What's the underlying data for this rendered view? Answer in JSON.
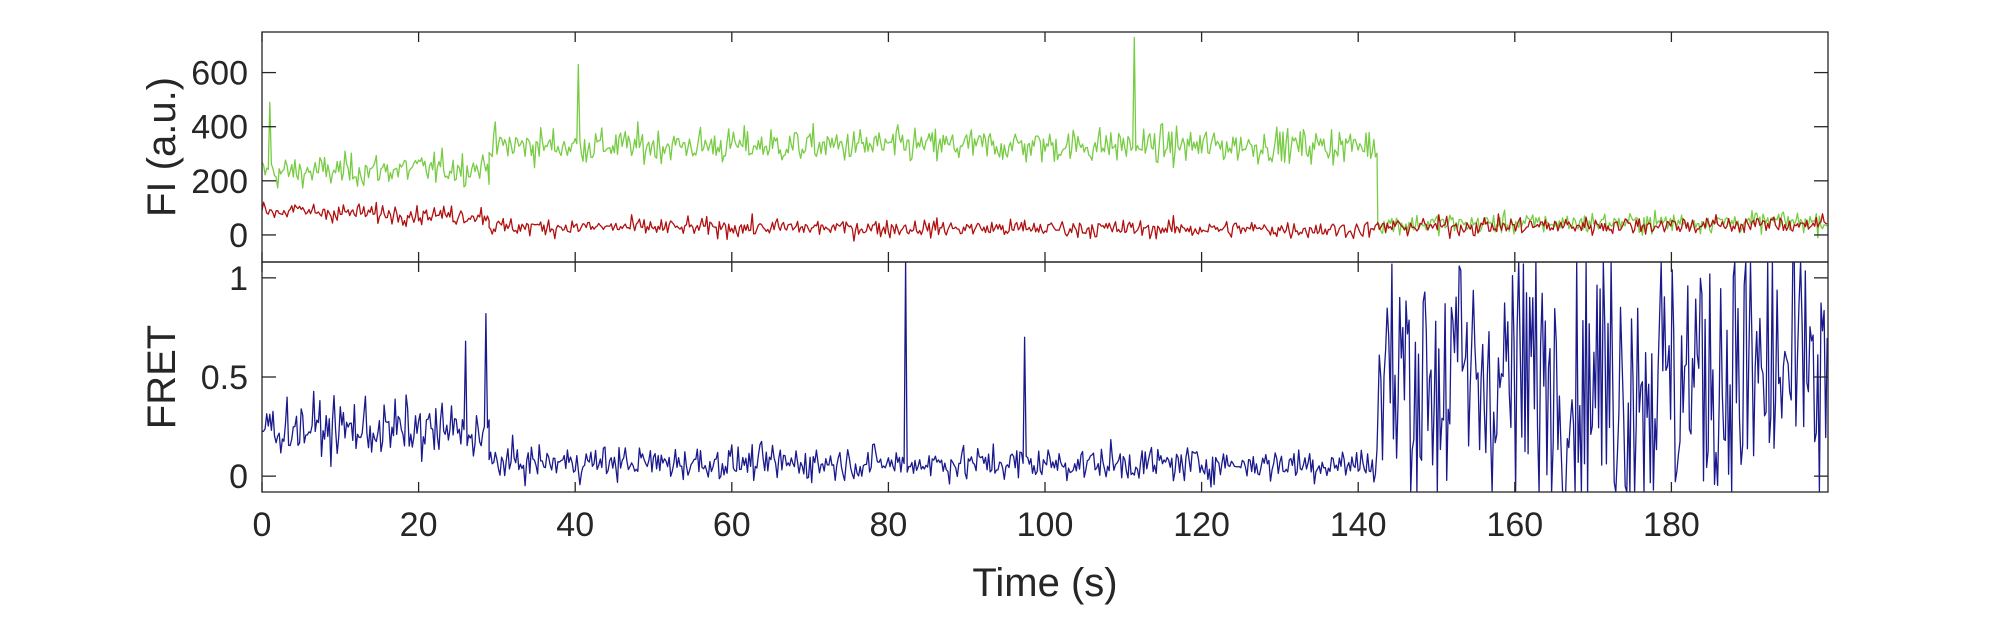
{
  "chart_data": [
    {
      "type": "line",
      "panel": "top",
      "ylabel": "FI (a.u.)",
      "xlim": [
        0,
        200
      ],
      "ylim": [
        -100,
        750
      ],
      "yticks": [
        0,
        200,
        400,
        600
      ],
      "ytick_labels": [
        "0",
        "200",
        "400",
        "600"
      ],
      "xticks": [
        0,
        20,
        40,
        60,
        80,
        100,
        120,
        140,
        160,
        180
      ],
      "x_tick_labels_shown": false,
      "grid": false,
      "series": [
        {
          "color": "#77cc44",
          "segments": [
            {
              "x_start": 0,
              "x_end": 29,
              "mean_start": 230,
              "mean_end": 250,
              "noise": 70
            },
            {
              "x_start": 29,
              "x_end": 142.5,
              "mean_start": 330,
              "mean_end": 330,
              "noise": 75
            },
            {
              "x_start": 142.5,
              "x_end": 200,
              "mean_start": 40,
              "mean_end": 50,
              "noise": 45
            }
          ],
          "spikes": [
            {
              "x": 111.5,
              "y": 730
            },
            {
              "x": 40.5,
              "y": 630
            },
            {
              "x": 1,
              "y": 490
            }
          ]
        },
        {
          "color": "#b01010",
          "segments": [
            {
              "x_start": 0,
              "x_end": 29,
              "mean_start": 90,
              "mean_end": 70,
              "noise": 40
            },
            {
              "x_start": 29,
              "x_end": 142.5,
              "mean_start": 30,
              "mean_end": 20,
              "noise": 38
            },
            {
              "x_start": 142.5,
              "x_end": 200,
              "mean_start": 30,
              "mean_end": 40,
              "noise": 40
            }
          ],
          "spikes": []
        }
      ]
    },
    {
      "type": "line",
      "panel": "bottom",
      "xlabel": "Time (s)",
      "ylabel": "FRET",
      "xlim": [
        0,
        200
      ],
      "ylim": [
        -0.08,
        1.08
      ],
      "yticks": [
        0,
        0.5,
        1
      ],
      "ytick_labels": [
        "0",
        "0.5",
        "1"
      ],
      "xticks": [
        0,
        20,
        40,
        60,
        80,
        100,
        120,
        140,
        160,
        180
      ],
      "xtick_labels": [
        "0",
        "20",
        "40",
        "60",
        "80",
        "100",
        "120",
        "140",
        "160",
        "180"
      ],
      "grid": false,
      "series": [
        {
          "color": "#1a1a8c",
          "segments": [
            {
              "x_start": 0,
              "x_end": 29,
              "mean_start": 0.25,
              "mean_end": 0.22,
              "noise": 0.17
            },
            {
              "x_start": 29,
              "x_end": 142.5,
              "mean_start": 0.07,
              "mean_end": 0.06,
              "noise": 0.1
            },
            {
              "x_start": 142.5,
              "x_end": 200,
              "mean_start": 0.5,
              "mean_end": 0.5,
              "noise": 0.9
            }
          ],
          "spikes": [
            {
              "x": 82.3,
              "y": 1.08
            },
            {
              "x": 97.5,
              "y": 0.7
            },
            {
              "x": 28.5,
              "y": 0.82
            },
            {
              "x": 26,
              "y": 0.68
            }
          ]
        }
      ]
    }
  ]
}
